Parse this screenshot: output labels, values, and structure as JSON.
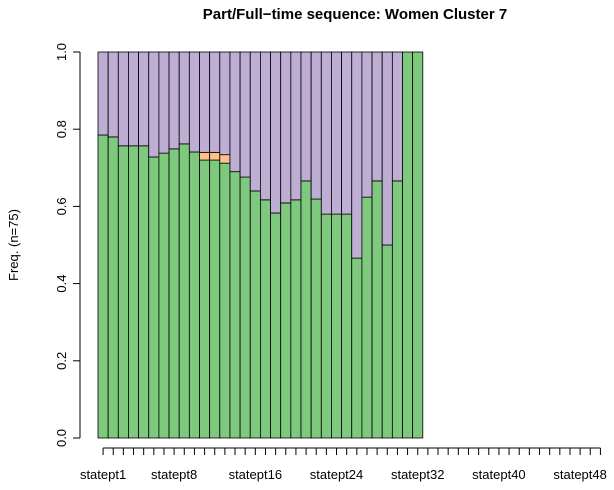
{
  "chart_data": {
    "type": "stacked-bar",
    "title": "Part/Full−time sequence: Women Cluster 7",
    "ylabel": "Freq. (n=75)",
    "categories": [
      "statept1",
      null,
      null,
      null,
      null,
      null,
      null,
      "statept8",
      null,
      null,
      null,
      null,
      null,
      null,
      null,
      "statept16",
      null,
      null,
      null,
      null,
      null,
      null,
      null,
      "statept24",
      null,
      null,
      null,
      null,
      null,
      null,
      null,
      "statept32",
      null,
      null,
      null,
      null,
      null,
      null,
      null,
      "statept40",
      null,
      null,
      null,
      null,
      null,
      null,
      null,
      "statept48",
      null,
      null
    ],
    "series": [
      {
        "color": "#7fc97f",
        "values": [
          0.785,
          0.78,
          0.757,
          0.757,
          0.757,
          0.728,
          0.738,
          0.749,
          0.762,
          0.741,
          0.72,
          0.72,
          0.712,
          0.69,
          0.676,
          0.64,
          0.617,
          0.583,
          0.609,
          0.617,
          0.666,
          0.619,
          0.58,
          0.58,
          0.58,
          0.466,
          0.624,
          0.666,
          0.5,
          0.666,
          1,
          1,
          null,
          null,
          null,
          null,
          null,
          null,
          null,
          null,
          null,
          null,
          null,
          null,
          null,
          null,
          null,
          null,
          null,
          null
        ]
      },
      {
        "color": "#fdc086",
        "values": [
          0,
          0,
          0,
          0,
          0,
          0,
          0,
          0,
          0,
          0,
          0.02,
          0.02,
          0.022,
          0,
          0,
          0,
          0,
          0,
          0,
          0,
          0,
          0,
          0,
          0,
          0,
          0,
          0,
          0,
          0,
          0,
          0,
          0,
          null,
          null,
          null,
          null,
          null,
          null,
          null,
          null,
          null,
          null,
          null,
          null,
          null,
          null,
          null,
          null,
          null,
          null
        ]
      },
      {
        "color": "#beaed4",
        "values": [
          0.215,
          0.22,
          0.243,
          0.243,
          0.243,
          0.272,
          0.262,
          0.251,
          0.238,
          0.259,
          0.26,
          0.26,
          0.266,
          0.31,
          0.324,
          0.36,
          0.383,
          0.417,
          0.391,
          0.383,
          0.334,
          0.381,
          0.42,
          0.42,
          0.42,
          0.534,
          0.376,
          0.334,
          0.5,
          0.334,
          0,
          0,
          null,
          null,
          null,
          null,
          null,
          null,
          null,
          null,
          null,
          null,
          null,
          null,
          null,
          null,
          null,
          null,
          null,
          null
        ]
      }
    ],
    "ylim": [
      0,
      1
    ],
    "yticks": [
      {
        "value": 0,
        "label": "0.0"
      },
      0.2,
      0.4,
      0.6,
      0.8,
      {
        "value": 1,
        "label": "1.0"
      }
    ]
  }
}
